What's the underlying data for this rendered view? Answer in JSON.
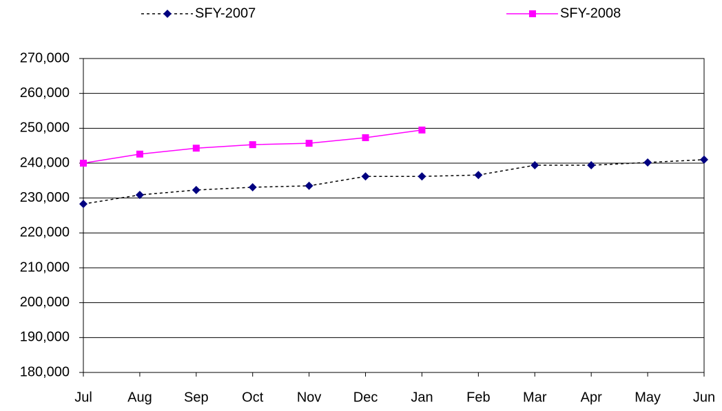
{
  "chart_data": {
    "type": "line",
    "categories": [
      "Jul",
      "Aug",
      "Sep",
      "Oct",
      "Nov",
      "Dec",
      "Jan",
      "Feb",
      "Mar",
      "Apr",
      "May",
      "Jun"
    ],
    "series": [
      {
        "name": "SFY-2007",
        "color": "#000080",
        "line_style": "dotted",
        "marker": "diamond",
        "values": [
          228300,
          230900,
          232300,
          233100,
          233500,
          236200,
          236200,
          236600,
          239400,
          239400,
          240200,
          241000
        ]
      },
      {
        "name": "SFY-2008",
        "color": "#ff00ff",
        "line_style": "solid",
        "marker": "square",
        "values": [
          240000,
          242600,
          244300,
          245300,
          245700,
          247300,
          249500,
          null,
          null,
          null,
          null,
          null
        ]
      }
    ],
    "ylim": [
      180000,
      270000
    ],
    "yticks": [
      {
        "value": 180000,
        "label": "180,000"
      },
      {
        "value": 190000,
        "label": "190,000"
      },
      {
        "value": 200000,
        "label": "200,000"
      },
      {
        "value": 210000,
        "label": "210,000"
      },
      {
        "value": 220000,
        "label": "220,000"
      },
      {
        "value": 230000,
        "label": "230,000"
      },
      {
        "value": 240000,
        "label": "240,000"
      },
      {
        "value": 250000,
        "label": "250,000"
      },
      {
        "value": 260000,
        "label": "260,000"
      },
      {
        "value": 270000,
        "label": "270,000"
      }
    ],
    "grid": true,
    "legend": "top"
  }
}
